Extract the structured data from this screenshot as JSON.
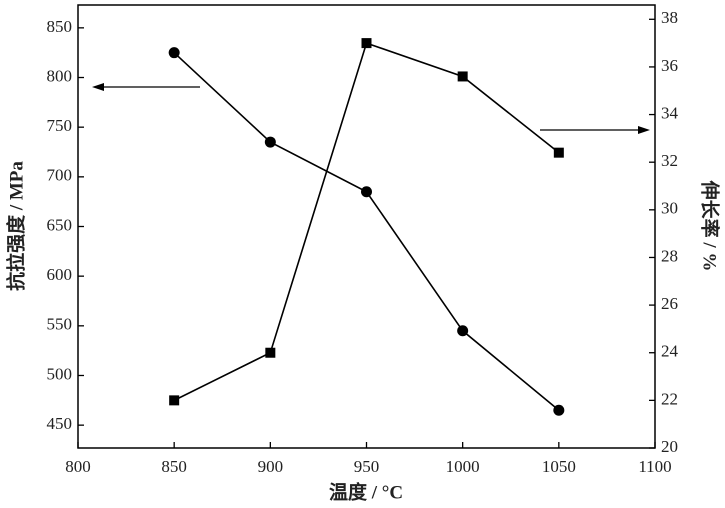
{
  "chart_data": {
    "type": "line",
    "x_label": "温度 / °C",
    "y_label": "抗拉强度 / MPa",
    "y2_label": "伸长率 / %",
    "x": [
      850,
      900,
      950,
      1000,
      1050
    ],
    "xlim": [
      800,
      1100
    ],
    "xticks": [
      800,
      850,
      900,
      950,
      1000,
      1050,
      1100
    ],
    "ylim": [
      427,
      873
    ],
    "yticks": [
      450,
      500,
      550,
      600,
      650,
      700,
      750,
      800,
      850
    ],
    "y2lim": [
      20,
      38.6
    ],
    "y2ticks": [
      20,
      22,
      24,
      26,
      28,
      30,
      32,
      34,
      36,
      38
    ],
    "series": [
      {
        "name": "抗拉强度",
        "color": "#000000",
        "marker": "circle",
        "values": [
          825,
          735,
          685,
          545,
          465
        ]
      },
      {
        "name": "伸长率",
        "color": "#000000",
        "marker": "square",
        "axis": "y2",
        "values": [
          22,
          24,
          37,
          35.6,
          32.4
        ]
      }
    ]
  }
}
